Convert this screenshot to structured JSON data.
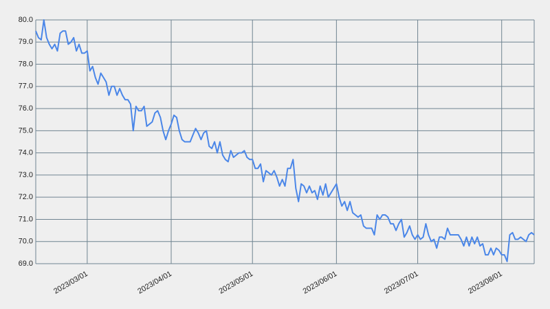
{
  "chart_data": {
    "type": "line",
    "x": [
      "2023/02/10",
      "2023/02/11",
      "2023/02/12",
      "2023/02/13",
      "2023/02/14",
      "2023/02/15",
      "2023/02/16",
      "2023/02/17",
      "2023/02/18",
      "2023/02/19",
      "2023/02/20",
      "2023/02/21",
      "2023/02/22",
      "2023/02/23",
      "2023/02/24",
      "2023/02/25",
      "2023/02/26",
      "2023/02/27",
      "2023/02/28",
      "2023/03/01",
      "2023/03/02",
      "2023/03/03",
      "2023/03/04",
      "2023/03/05",
      "2023/03/06",
      "2023/03/07",
      "2023/03/08",
      "2023/03/09",
      "2023/03/10",
      "2023/03/11",
      "2023/03/12",
      "2023/03/13",
      "2023/03/14",
      "2023/03/15",
      "2023/03/16",
      "2023/03/17",
      "2023/03/18",
      "2023/03/19",
      "2023/03/20",
      "2023/03/21",
      "2023/03/22",
      "2023/03/23",
      "2023/03/24",
      "2023/03/25",
      "2023/03/26",
      "2023/03/27",
      "2023/03/28",
      "2023/03/29",
      "2023/03/30",
      "2023/03/31",
      "2023/04/01",
      "2023/04/02",
      "2023/04/03",
      "2023/04/04",
      "2023/04/05",
      "2023/04/06",
      "2023/04/07",
      "2023/04/08",
      "2023/04/09",
      "2023/04/10",
      "2023/04/11",
      "2023/04/12",
      "2023/04/13",
      "2023/04/14",
      "2023/04/15",
      "2023/04/16",
      "2023/04/17",
      "2023/04/18",
      "2023/04/19",
      "2023/04/20",
      "2023/04/21",
      "2023/04/22",
      "2023/04/23",
      "2023/04/24",
      "2023/04/25",
      "2023/04/26",
      "2023/04/27",
      "2023/04/28",
      "2023/04/29",
      "2023/04/30",
      "2023/05/01",
      "2023/05/02",
      "2023/05/03",
      "2023/05/04",
      "2023/05/05",
      "2023/05/06",
      "2023/05/07",
      "2023/05/08",
      "2023/05/09",
      "2023/05/10",
      "2023/05/11",
      "2023/05/12",
      "2023/05/13",
      "2023/05/14",
      "2023/05/15",
      "2023/05/16",
      "2023/05/17",
      "2023/05/18",
      "2023/05/19",
      "2023/05/20",
      "2023/05/21",
      "2023/05/22",
      "2023/05/23",
      "2023/05/24",
      "2023/05/25",
      "2023/05/26",
      "2023/05/27",
      "2023/05/28",
      "2023/05/29",
      "2023/05/30",
      "2023/05/31",
      "2023/06/01",
      "2023/06/02",
      "2023/06/03",
      "2023/06/04",
      "2023/06/05",
      "2023/06/06",
      "2023/06/07",
      "2023/06/08",
      "2023/06/09",
      "2023/06/10",
      "2023/06/11",
      "2023/06/12",
      "2023/06/13",
      "2023/06/14",
      "2023/06/15",
      "2023/06/16",
      "2023/06/17",
      "2023/06/18",
      "2023/06/19",
      "2023/06/20",
      "2023/06/21",
      "2023/06/22",
      "2023/06/23",
      "2023/06/24",
      "2023/06/25",
      "2023/06/26",
      "2023/06/27",
      "2023/06/28",
      "2023/06/29",
      "2023/06/30",
      "2023/07/01",
      "2023/07/02",
      "2023/07/03",
      "2023/07/04",
      "2023/07/05",
      "2023/07/06",
      "2023/07/07",
      "2023/07/08",
      "2023/07/09",
      "2023/07/10",
      "2023/07/11",
      "2023/07/12",
      "2023/07/13",
      "2023/07/14",
      "2023/07/15",
      "2023/07/16",
      "2023/07/17",
      "2023/07/18",
      "2023/07/19",
      "2023/07/20",
      "2023/07/21",
      "2023/07/22",
      "2023/07/23",
      "2023/07/24",
      "2023/07/25",
      "2023/07/26",
      "2023/07/27",
      "2023/07/28",
      "2023/07/29",
      "2023/07/30",
      "2023/07/31",
      "2023/08/01",
      "2023/08/02",
      "2023/08/03",
      "2023/08/04",
      "2023/08/05",
      "2023/08/06",
      "2023/08/07",
      "2023/08/08",
      "2023/08/09",
      "2023/08/10",
      "2023/08/11",
      "2023/08/12",
      "2023/08/13"
    ],
    "series": [
      {
        "color": "#4a86e8",
        "values": [
          79.5,
          79.2,
          79.1,
          80.0,
          79.2,
          78.9,
          78.7,
          78.9,
          78.6,
          79.4,
          79.5,
          79.5,
          78.9,
          79.0,
          79.2,
          78.6,
          78.9,
          78.5,
          78.5,
          78.6,
          77.7,
          77.9,
          77.4,
          77.1,
          77.6,
          77.4,
          77.2,
          76.6,
          77.0,
          77.0,
          76.6,
          76.9,
          76.6,
          76.4,
          76.4,
          76.2,
          75.0,
          76.1,
          75.9,
          75.9,
          76.1,
          75.2,
          75.3,
          75.4,
          75.8,
          75.9,
          75.6,
          75.0,
          74.6,
          75.0,
          75.3,
          75.7,
          75.6,
          75.0,
          74.6,
          74.5,
          74.5,
          74.5,
          74.8,
          75.1,
          74.9,
          74.6,
          74.9,
          75.0,
          74.3,
          74.2,
          74.5,
          74.0,
          74.5,
          73.9,
          73.7,
          73.6,
          74.1,
          73.8,
          73.9,
          74.0,
          74.0,
          74.1,
          73.8,
          73.7,
          73.7,
          73.3,
          73.3,
          73.5,
          72.7,
          73.2,
          73.1,
          73.0,
          73.2,
          72.9,
          72.5,
          72.8,
          72.5,
          73.3,
          73.3,
          73.7,
          72.4,
          71.8,
          72.6,
          72.5,
          72.2,
          72.5,
          72.2,
          72.3,
          71.9,
          72.5,
          72.1,
          72.6,
          72.0,
          72.2,
          72.4,
          72.6,
          72.0,
          71.6,
          71.8,
          71.4,
          71.8,
          71.3,
          71.2,
          71.1,
          71.2,
          70.7,
          70.6,
          70.6,
          70.6,
          70.3,
          71.2,
          71.0,
          71.2,
          71.2,
          71.1,
          70.8,
          70.8,
          70.5,
          70.8,
          71.0,
          70.2,
          70.4,
          70.7,
          70.3,
          70.1,
          70.3,
          70.1,
          70.2,
          70.8,
          70.3,
          70.0,
          70.1,
          69.7,
          70.2,
          70.2,
          70.1,
          70.6,
          70.3,
          70.3,
          70.3,
          70.3,
          70.1,
          69.8,
          70.2,
          69.8,
          70.2,
          69.9,
          70.2,
          69.8,
          69.9,
          69.4,
          69.4,
          69.7,
          69.4,
          69.7,
          69.6,
          69.4,
          69.4,
          69.1,
          70.3,
          70.4,
          70.1,
          70.1,
          70.2,
          70.1,
          70.0,
          70.3,
          70.4,
          70.3
        ]
      }
    ],
    "xlim": [
      "2023/02/10",
      "2023/08/13"
    ],
    "xticks": [
      "2023/03/01",
      "2023/04/01",
      "2023/05/01",
      "2023/06/01",
      "2023/07/01",
      "2023/08/01"
    ],
    "ylim": [
      69,
      80
    ],
    "yticks": [
      {
        "value": 69,
        "label": "69.0"
      },
      {
        "value": 70,
        "label": "70.0"
      },
      {
        "value": 71,
        "label": "71.0"
      },
      {
        "value": 72,
        "label": "72.0"
      },
      {
        "value": 73,
        "label": "73.0"
      },
      {
        "value": 74,
        "label": "74.0"
      },
      {
        "value": 75,
        "label": "75.0"
      },
      {
        "value": 76,
        "label": "76.0"
      },
      {
        "value": 77,
        "label": "77.0"
      },
      {
        "value": 78,
        "label": "78.0"
      },
      {
        "value": 79,
        "label": "79.0"
      },
      {
        "value": 80,
        "label": "80.0"
      }
    ],
    "grid": true
  }
}
